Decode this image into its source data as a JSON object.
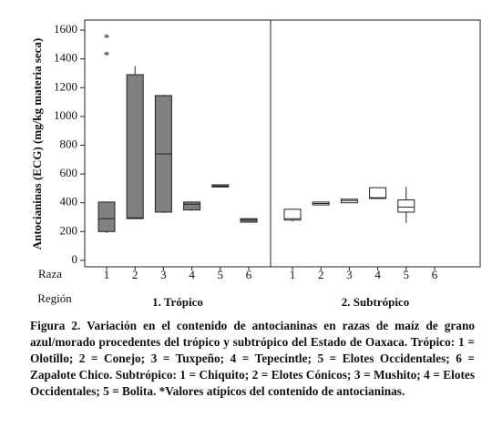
{
  "chart_data": {
    "type": "boxplot",
    "y_label": "Antocianinas (ECG) (mg/kg materia seca)",
    "x_label": "Raza",
    "group_label": "Región",
    "ylim": [
      -45,
      1670
    ],
    "yticks": [
      0,
      200,
      400,
      600,
      800,
      1000,
      1200,
      1400,
      1600
    ],
    "panels": [
      {
        "name": "1. Trópico",
        "color": "#808080",
        "categories": [
          "1",
          "2",
          "3",
          "4",
          "5",
          "6"
        ],
        "boxes": [
          {
            "min": 190,
            "q1": 200,
            "median": 290,
            "q3": 405,
            "max": 405
          },
          {
            "min": 290,
            "q1": 290,
            "median": 295,
            "q3": 1290,
            "max": 1350
          },
          {
            "min": 330,
            "q1": 335,
            "median": 740,
            "q3": 1145,
            "max": 1150
          },
          {
            "min": 345,
            "q1": 350,
            "median": 390,
            "q3": 405,
            "max": 410
          },
          {
            "min": 510,
            "q1": 510,
            "median": 515,
            "q3": 525,
            "max": 525
          },
          {
            "min": 265,
            "q1": 265,
            "median": 280,
            "q3": 290,
            "max": 290
          }
        ],
        "outliers": [
          {
            "category": 0,
            "values": [
              1555,
              1435
            ],
            "marker": "*"
          }
        ]
      },
      {
        "name": "2. Subtrópico",
        "color": "#ffffff",
        "categories": [
          "1",
          "2",
          "3",
          "4",
          "5",
          "6"
        ],
        "boxes": [
          {
            "min": 270,
            "q1": 280,
            "median": 290,
            "q3": 355,
            "max": 355
          },
          {
            "min": 385,
            "q1": 385,
            "median": 395,
            "q3": 405,
            "max": 405
          },
          {
            "min": 400,
            "q1": 400,
            "median": 415,
            "q3": 425,
            "max": 425
          },
          {
            "min": 430,
            "q1": 430,
            "median": 435,
            "q3": 505,
            "max": 505
          },
          {
            "min": 260,
            "q1": 335,
            "median": 370,
            "q3": 420,
            "max": 510
          },
          null
        ]
      }
    ],
    "caption": "Figura 2. Variación en el contenido de antocianinas en razas de maíz de grano azul/morado procedentes del trópico y subtrópico del Estado de Oaxaca. Trópico: 1 = Olotillo; 2 = Conejo; 3 = Tuxpeño; 4 = Tepecintle; 5 = Elotes Occidentales; 6 = Zapalote Chico. Subtrópico: 1 = Chiquito; 2 = Elotes Cónicos; 3 = Mushito; 4 = Elotes Occidentales; 5 = Bolita. *Valores atípicos del contenido de antocianinas."
  }
}
